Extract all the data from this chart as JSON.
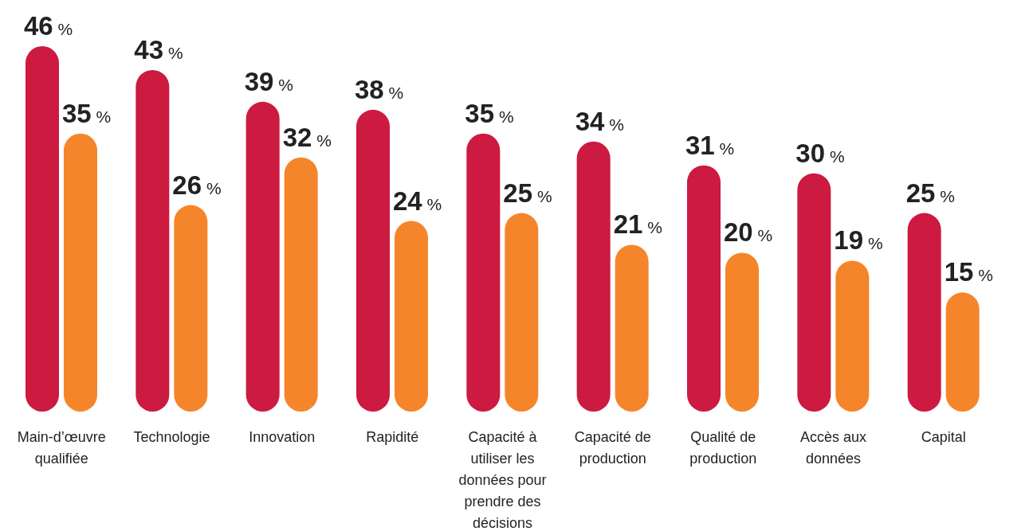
{
  "chart_data": {
    "type": "bar",
    "categories": [
      "Main-d’œuvre qualifiée",
      "Technologie",
      "Innovation",
      "Rapidité",
      "Capacité à utiliser les données pour prendre des décisions",
      "Capacité de production",
      "Qualité de production",
      "Accès aux données",
      "Capital"
    ],
    "series": [
      {
        "color": "#cc1a40",
        "values": [
          46,
          43,
          39,
          38,
          35,
          34,
          31,
          30,
          25
        ],
        "value_labels": [
          "46 %",
          "43 %",
          "39 %",
          "38 %",
          "35 %",
          "34 %",
          "31 %",
          "30 %",
          "25 %"
        ]
      },
      {
        "color": "#f5852a",
        "values": [
          35,
          26,
          32,
          24,
          25,
          21,
          20,
          19,
          15
        ],
        "value_labels": [
          "35 %",
          "26 %",
          "32 %",
          "24 %",
          "25 %",
          "21 %",
          "20 %",
          "19 %",
          "15 %"
        ]
      }
    ],
    "grid": false,
    "legend": false
  }
}
